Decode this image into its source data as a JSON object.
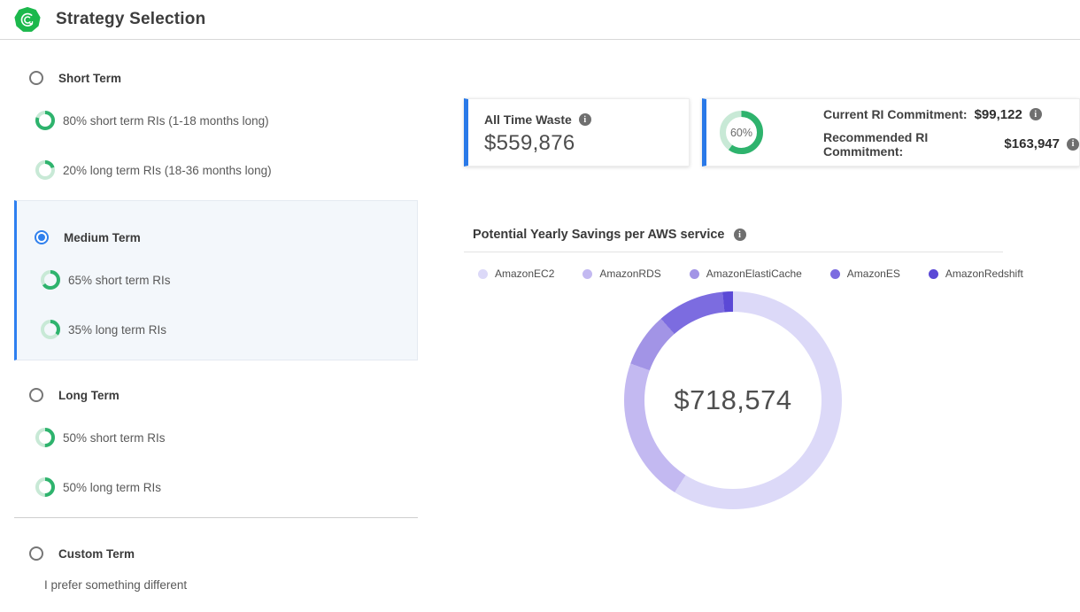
{
  "header": {
    "title": "Strategy Selection"
  },
  "colors": {
    "brand_green": "#1cb84c",
    "accent_blue": "#2d7ff0",
    "ring_green": "#2eb36d",
    "ring_track": "#c8e9d6",
    "card_bar_blue": "#2979e8"
  },
  "strategies": {
    "items": [
      {
        "label": "Short Term",
        "selected": false,
        "subs": [
          {
            "percent": 80,
            "label": "80% short term RIs (1-18 months long)"
          },
          {
            "percent": 20,
            "label": "20% long term RIs (18-36 months long)"
          }
        ]
      },
      {
        "label": "Medium Term",
        "selected": true,
        "subs": [
          {
            "percent": 65,
            "label": "65% short term RIs"
          },
          {
            "percent": 35,
            "label": "35% long term RIs"
          }
        ]
      },
      {
        "label": "Long Term",
        "selected": false,
        "subs": [
          {
            "percent": 50,
            "label": "50% short term RIs"
          },
          {
            "percent": 50,
            "label": "50% long term RIs"
          }
        ]
      },
      {
        "label": "Custom Term",
        "selected": false,
        "note": "I prefer something different"
      }
    ]
  },
  "cards": {
    "waste": {
      "label": "All Time Waste",
      "value": "$559,876"
    },
    "commitment": {
      "gauge_percent": 60,
      "gauge_label": "60%",
      "current_label": "Current RI Commitment:",
      "current_value": "$99,122",
      "recommended_label": "Recommended RI Commitment:",
      "recommended_value": "$163,947"
    }
  },
  "chart_data": {
    "type": "pie",
    "style": "donut",
    "title": "Potential Yearly Savings per AWS service",
    "center_label": "$718,574",
    "total_value": 718574,
    "legend_position": "top",
    "series": [
      {
        "name": "AmazonEC2",
        "percent": 59.0,
        "value": 424000,
        "color": "#dcd9f8"
      },
      {
        "name": "AmazonRDS",
        "percent": 21.5,
        "value": 154500,
        "color": "#c3b9f1"
      },
      {
        "name": "AmazonElastiCache",
        "percent": 8.0,
        "value": 57500,
        "color": "#a294e6"
      },
      {
        "name": "AmazonES",
        "percent": 10.0,
        "value": 71800,
        "color": "#7c6ce0"
      },
      {
        "name": "AmazonRedshift",
        "percent": 1.5,
        "value": 10774,
        "color": "#5b49d6"
      }
    ]
  }
}
